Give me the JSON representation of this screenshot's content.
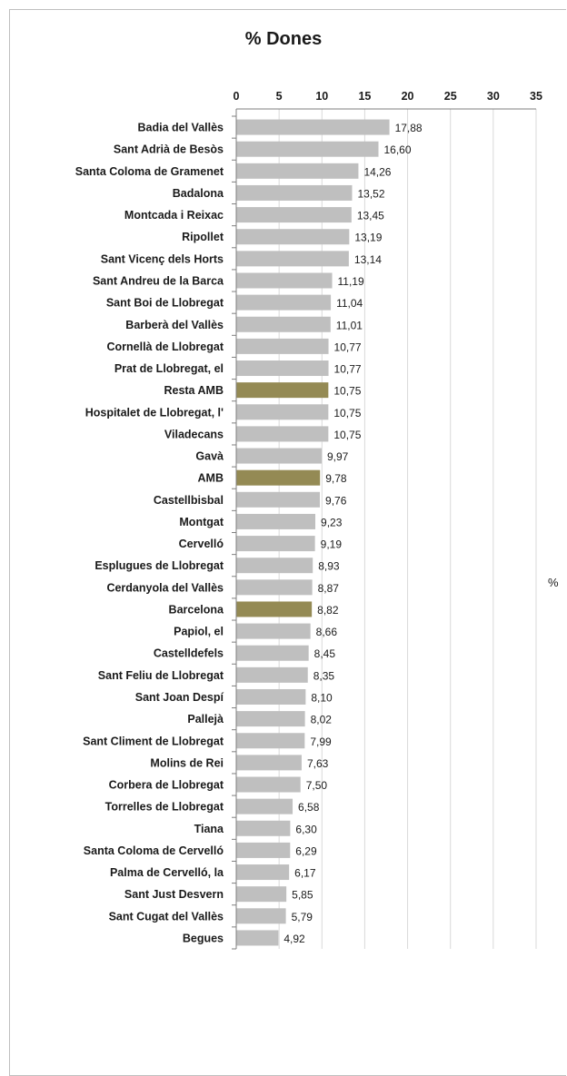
{
  "chart_data": {
    "type": "bar",
    "orientation": "horizontal",
    "title": "% Dones",
    "xlim": [
      0,
      35
    ],
    "xticks": [
      0,
      5,
      10,
      15,
      20,
      25,
      30,
      35
    ],
    "unit_label": "%",
    "grid": true,
    "categories": [
      "Badia del Vallès",
      "Sant Adrià de Besòs",
      "Santa Coloma de Gramenet",
      "Badalona",
      "Montcada i Reixac",
      "Ripollet",
      "Sant Vicenç dels Horts",
      "Sant Andreu de la Barca",
      "Sant Boi de Llobregat",
      "Barberà del Vallès",
      "Cornellà de Llobregat",
      "Prat de Llobregat, el",
      "Resta AMB",
      "Hospitalet de Llobregat, l'",
      "Viladecans",
      "Gavà",
      "AMB",
      "Castellbisbal",
      "Montgat",
      "Cervelló",
      "Esplugues de Llobregat",
      "Cerdanyola del Vallès",
      "Barcelona",
      "Papiol, el",
      "Castelldefels",
      "Sant Feliu de Llobregat",
      "Sant Joan Despí",
      "Pallejà",
      "Sant Climent de Llobregat",
      "Molins de Rei",
      "Corbera de Llobregat",
      "Torrelles de Llobregat",
      "Tiana",
      "Santa Coloma de Cervelló",
      "Palma de Cervelló, la",
      "Sant Just Desvern",
      "Sant Cugat del Vallès",
      "Begues"
    ],
    "values": [
      17.88,
      16.6,
      14.26,
      13.52,
      13.45,
      13.19,
      13.14,
      11.19,
      11.04,
      11.01,
      10.77,
      10.77,
      10.75,
      10.75,
      10.75,
      9.97,
      9.78,
      9.76,
      9.23,
      9.19,
      8.93,
      8.87,
      8.82,
      8.66,
      8.45,
      8.35,
      8.1,
      8.02,
      7.99,
      7.63,
      7.5,
      6.58,
      6.3,
      6.29,
      6.17,
      5.85,
      5.79,
      4.92
    ],
    "value_labels": [
      "17,88",
      "16,60",
      "14,26",
      "13,52",
      "13,45",
      "13,19",
      "13,14",
      "11,19",
      "11,04",
      "11,01",
      "10,77",
      "10,77",
      "10,75",
      "10,75",
      "10,75",
      "9,97",
      "9,78",
      "9,76",
      "9,23",
      "9,19",
      "8,93",
      "8,87",
      "8,82",
      "8,66",
      "8,45",
      "8,35",
      "8,10",
      "8,02",
      "7,99",
      "7,63",
      "7,50",
      "6,58",
      "6,30",
      "6,29",
      "6,17",
      "5,85",
      "5,79",
      "4,92"
    ],
    "highlighted": [
      "Resta AMB",
      "AMB",
      "Barcelona"
    ],
    "colors": {
      "default": "#bfbfbf",
      "highlight": "#948a54",
      "grid": "#d9d9d9",
      "axis": "#7f7f7f"
    }
  }
}
